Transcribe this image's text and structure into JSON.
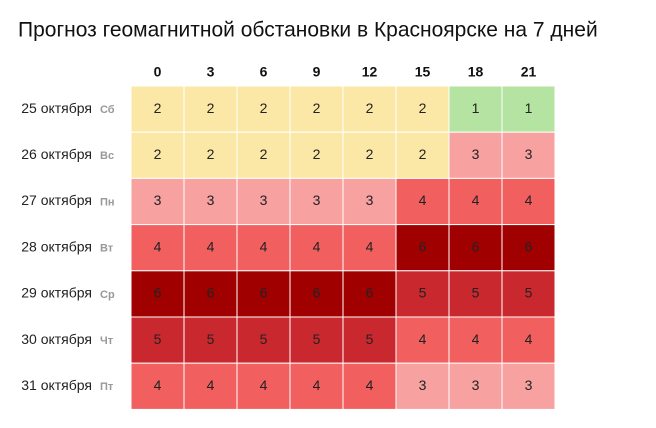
{
  "chart_data": {
    "type": "heatmap",
    "title": "Прогноз геомагнитной обстановки в Красноярске на 7 дней",
    "x": [
      0,
      3,
      6,
      9,
      12,
      15,
      18,
      21
    ],
    "dates": [
      "25 октября",
      "26 октября",
      "27 октября",
      "28 октября",
      "29 октября",
      "30 октября",
      "31 октября"
    ],
    "weekdays": [
      "Сб",
      "Вс",
      "Пн",
      "Вт",
      "Ср",
      "Чт",
      "Пт"
    ],
    "values": [
      [
        2,
        2,
        2,
        2,
        2,
        2,
        1,
        1
      ],
      [
        2,
        2,
        2,
        2,
        2,
        2,
        3,
        3
      ],
      [
        3,
        3,
        3,
        3,
        3,
        4,
        4,
        4
      ],
      [
        4,
        4,
        4,
        4,
        4,
        6,
        6,
        6
      ],
      [
        6,
        6,
        6,
        6,
        6,
        5,
        5,
        5
      ],
      [
        5,
        5,
        5,
        5,
        5,
        4,
        4,
        4
      ],
      [
        4,
        4,
        4,
        4,
        4,
        3,
        3,
        3
      ]
    ],
    "colors": {
      "1": "#b5e3a1",
      "2": "#fbe8a6",
      "3": "#f8a1a1",
      "4": "#f25f5f",
      "5": "#c9282f",
      "6": "#a10000"
    }
  }
}
